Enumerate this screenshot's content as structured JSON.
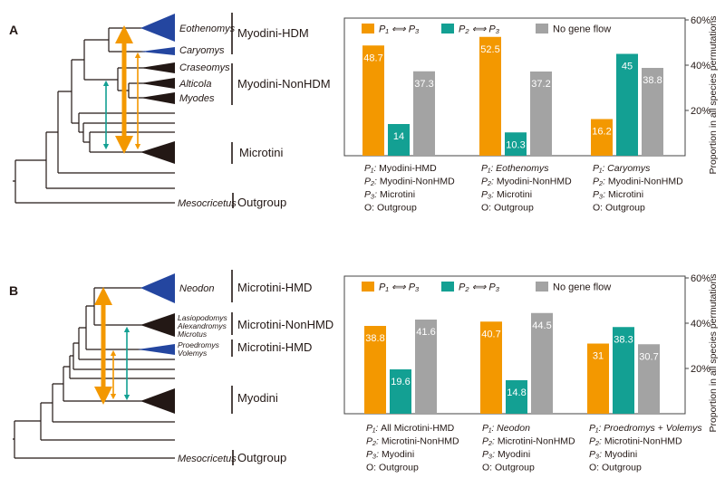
{
  "colors": {
    "orange": "#F39800",
    "teal": "#13A093",
    "gray": "#A3A3A3",
    "hmd_blue": "#2446A0",
    "nonhmd_dark": "#231815"
  },
  "panel_a": {
    "label": "A",
    "taxa": [
      "Eothenomys",
      "Caryomys",
      "Craseomys",
      "Alticola",
      "Myodes",
      "Mesocricetus"
    ],
    "groups": [
      "Myodini-HDM",
      "Myodini-NonHDM",
      "Microtini",
      "Outgroup"
    ]
  },
  "panel_b": {
    "label": "B",
    "taxa": [
      "Neodon",
      "Lasiopodomys",
      "Alexandromys",
      "Microtus",
      "Proedromys",
      "Volemys",
      "Mesocricetus"
    ],
    "groups": [
      "Microtini-HMD",
      "Microtini-NonHMD",
      "Microtini-HMD",
      "Myodini",
      "Outgroup"
    ]
  },
  "chart_data": [
    {
      "type": "bar",
      "ylabel": "Proportion in all species permutations",
      "ylim": [
        0,
        60
      ],
      "yticks": [
        "20%",
        "40%",
        "60%"
      ],
      "legend": [
        "P₁ ⟺ P₃",
        "P₂ ⟺ P₃",
        "No gene flow"
      ],
      "legend_position": "top",
      "categories": [
        [
          {
            "role": "P₁",
            "name": "Myodini-HMD",
            "italic": false
          },
          {
            "role": "P₂",
            "name": "Myodini-NonHMD",
            "italic": false
          },
          {
            "role": "P₃",
            "name": "Microtini",
            "italic": false
          },
          {
            "role": "O",
            "name": "Outgroup",
            "italic": false
          }
        ],
        [
          {
            "role": "P₁",
            "name": "Eothenomys",
            "italic": true
          },
          {
            "role": "P₂",
            "name": "Myodini-NonHMD",
            "italic": false
          },
          {
            "role": "P₃",
            "name": "Microtini",
            "italic": false
          },
          {
            "role": "O",
            "name": "Outgroup",
            "italic": false
          }
        ],
        [
          {
            "role": "P₁",
            "name": "Caryomys",
            "italic": true
          },
          {
            "role": "P₂",
            "name": "Myodini-NonHMD",
            "italic": false
          },
          {
            "role": "P₃",
            "name": "Microtini",
            "italic": false
          },
          {
            "role": "O",
            "name": "Outgroup",
            "italic": false
          }
        ]
      ],
      "series": [
        {
          "name": "P₁ ⟺ P₃",
          "values": [
            48.7,
            52.5,
            16.2
          ]
        },
        {
          "name": "P₂ ⟺ P₃",
          "values": [
            14,
            10.3,
            45
          ]
        },
        {
          "name": "No gene flow",
          "values": [
            37.3,
            37.2,
            38.8
          ]
        }
      ]
    },
    {
      "type": "bar",
      "ylabel": "Proportion in all species permutations",
      "ylim": [
        0,
        60
      ],
      "yticks": [
        "20%",
        "40%",
        "60%"
      ],
      "legend": [
        "P₁ ⟺ P₃",
        "P₂ ⟺ P₃",
        "No gene flow"
      ],
      "legend_position": "top",
      "categories": [
        [
          {
            "role": "P₁",
            "name": "All Microtini-HMD",
            "italic": false
          },
          {
            "role": "P₂",
            "name": "Microtini-NonHMD",
            "italic": false
          },
          {
            "role": "P₃",
            "name": "Myodini",
            "italic": false
          },
          {
            "role": "O",
            "name": "Outgroup",
            "italic": false
          }
        ],
        [
          {
            "role": "P₁",
            "name": "Neodon",
            "italic": true
          },
          {
            "role": "P₂",
            "name": "Microtini-NonHMD",
            "italic": false
          },
          {
            "role": "P₃",
            "name": "Myodini",
            "italic": false
          },
          {
            "role": "O",
            "name": "Outgroup",
            "italic": false
          }
        ],
        [
          {
            "role": "P₁",
            "name": "Proedromys + Volemys",
            "italic": true
          },
          {
            "role": "P₂",
            "name": "Microtini-NonHMD",
            "italic": false
          },
          {
            "role": "P₃",
            "name": "Myodini",
            "italic": false
          },
          {
            "role": "O",
            "name": "Outgroup",
            "italic": false
          }
        ]
      ],
      "series": [
        {
          "name": "P₁ ⟺ P₃",
          "values": [
            38.8,
            40.7,
            31
          ]
        },
        {
          "name": "P₂ ⟺ P₃",
          "values": [
            19.6,
            14.8,
            38.3
          ]
        },
        {
          "name": "No gene flow",
          "values": [
            41.6,
            44.5,
            30.7
          ]
        }
      ]
    }
  ]
}
